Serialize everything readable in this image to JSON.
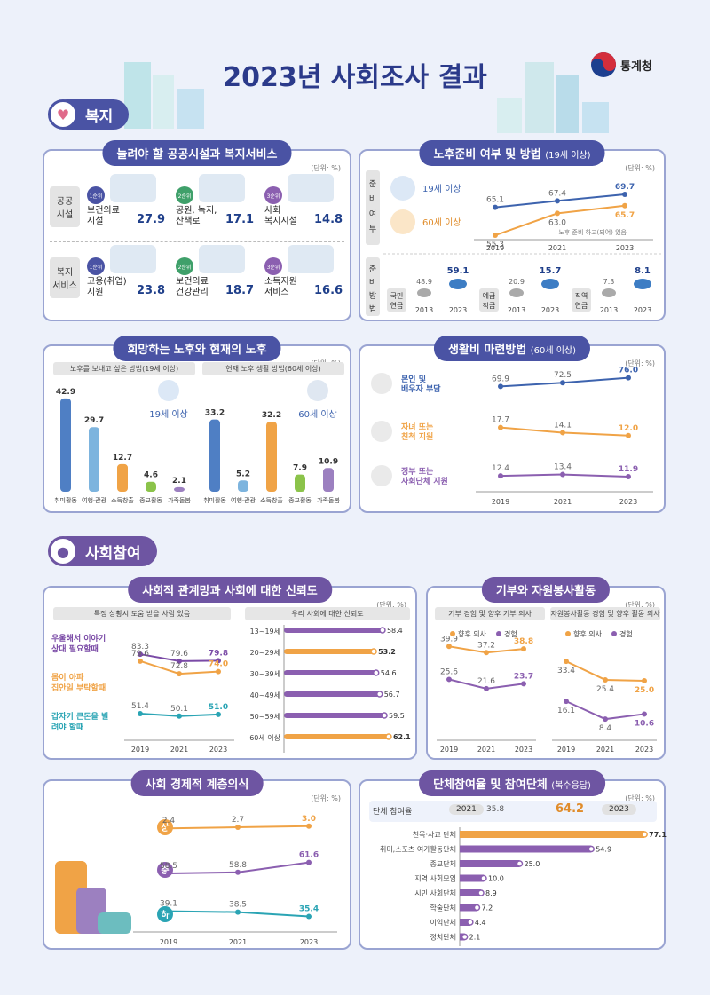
{
  "title": "2023년 사회조사 결과",
  "logo": "통계청",
  "sections": {
    "welfare": "복지",
    "social": "사회참여"
  },
  "unit": "(단위: %)",
  "facilities": {
    "title": "늘려야 할 공공시설과 복지서비스",
    "rows": [
      {
        "label": "공공\n시설",
        "items": [
          {
            "rank": "1순위",
            "name": "보건의료\n시설",
            "value": "27.9"
          },
          {
            "rank": "2순위",
            "name": "공원, 녹지,\n산책로",
            "value": "17.1"
          },
          {
            "rank": "3순위",
            "name": "사회\n복지시설",
            "value": "14.8"
          }
        ]
      },
      {
        "label": "복지\n서비스",
        "items": [
          {
            "rank": "1순위",
            "name": "고용(취업)\n지원",
            "value": "23.8"
          },
          {
            "rank": "2순위",
            "name": "보건의료\n건강관리",
            "value": "18.7"
          },
          {
            "rank": "3순위",
            "name": "소득지원\n서비스",
            "value": "16.6"
          }
        ]
      }
    ]
  },
  "retire_prep": {
    "title": "노후준비 여부 및 방법",
    "title_small": "(19세 이상)",
    "side1": "준비여부",
    "side2": "준비방법",
    "legend19": "19세 이상",
    "legend60": "60세 이상",
    "note": "노후 준비 하고(되어) 있음",
    "years": [
      "2019",
      "2021",
      "2023"
    ],
    "series19": [
      65.1,
      67.4,
      69.7
    ],
    "series60": [
      55.3,
      63.0,
      65.7
    ],
    "labels19": [
      "65.1",
      "67.4",
      "69.7"
    ],
    "labels60": [
      "55.3",
      "63.0",
      "65.7"
    ],
    "methods": [
      {
        "name": "국민\n연금",
        "v2013": "48.9",
        "v2023": "59.1"
      },
      {
        "name": "예금\n적금",
        "v2013": "20.9",
        "v2023": "15.7"
      },
      {
        "name": "직역\n연금",
        "v2013": "7.3",
        "v2023": "8.1"
      }
    ],
    "mini_years": [
      "2013",
      "2023"
    ]
  },
  "hope_retire": {
    "title": "희망하는 노후와 현재의 노후",
    "sub1": "노후를 보내고 싶은 방법(19세 이상)",
    "sub2": "현재 노후 생활 방법(60세 이상)",
    "label19": "19세 이상",
    "label60": "60세 이상",
    "categories": [
      "취미활동",
      "여행·관광",
      "소득창출",
      "종교활동",
      "가족돌봄"
    ],
    "values19": [
      42.9,
      29.7,
      12.7,
      4.6,
      2.1
    ],
    "values60": [
      33.2,
      5.2,
      32.2,
      7.9,
      10.9
    ],
    "labels19": [
      "42.9",
      "29.7",
      "12.7",
      "4.6",
      "2.1"
    ],
    "labels60": [
      "33.2",
      "5.2",
      "32.2",
      "7.9",
      "10.9"
    ]
  },
  "living_cost": {
    "title": "생활비 마련방법",
    "title_small": "(60세 이상)",
    "years": [
      "2019",
      "2021",
      "2023"
    ],
    "series": [
      {
        "name": "본인 및\n배우자 부담",
        "values": [
          69.9,
          72.5,
          76.0
        ],
        "labels": [
          "69.9",
          "72.5",
          "76.0"
        ],
        "color": "#3d63ae"
      },
      {
        "name": "자녀 또는\n친척 지원",
        "values": [
          17.7,
          14.1,
          12.0
        ],
        "labels": [
          "17.7",
          "14.1",
          "12.0"
        ],
        "color": "#f0a346"
      },
      {
        "name": "정부 또는\n사회단체 지원",
        "values": [
          12.4,
          13.4,
          11.9
        ],
        "labels": [
          "12.4",
          "13.4",
          "11.9"
        ],
        "color": "#8b5fb0"
      }
    ]
  },
  "trust": {
    "title": "사회적 관계망과 사회에 대한 신뢰도",
    "sub1": "특정 상황시 도움 받을 사람 있음",
    "sub2": "우리 사회에 대한 신뢰도",
    "years": [
      "2019",
      "2021",
      "2023"
    ],
    "series": [
      {
        "name": "우울해서 이야기\n상대 필요할때",
        "values": [
          83.3,
          79.6,
          79.8
        ],
        "labels": [
          "83.3",
          "79.6",
          "79.8"
        ],
        "color": "#7a4aa6"
      },
      {
        "name": "몸이 아파\n집안일 부탁할때",
        "values": [
          79.6,
          72.8,
          74.0
        ],
        "labels": [
          "79.6",
          "72.8",
          "74.0"
        ],
        "color": "#f0a346"
      },
      {
        "name": "갑자기 큰돈을 빌\n려야 할때",
        "values": [
          51.4,
          50.1,
          51.0
        ],
        "labels": [
          "51.4",
          "50.1",
          "51.0"
        ],
        "color": "#2aa4b4"
      }
    ],
    "ages": [
      "13~19세",
      "20~29세",
      "30~39세",
      "40~49세",
      "50~59세",
      "60세 이상"
    ],
    "age_values": [
      58.4,
      53.2,
      54.6,
      56.7,
      59.5,
      62.1
    ],
    "age_labels": [
      "58.4",
      "53.2",
      "54.6",
      "56.7",
      "59.5",
      "62.1"
    ]
  },
  "donation": {
    "title": "기부와 자원봉사활동",
    "sub1": "기부 경험 및 향후 기부 의사",
    "sub2": "자원봉사활동 경험 및 향후 활동 의사",
    "legend_intent": "향후 의사",
    "legend_exp": "경험",
    "years": [
      "2019",
      "2021",
      "2023"
    ],
    "give_intent": [
      39.9,
      37.2,
      38.8
    ],
    "give_intent_labels": [
      "39.9",
      "37.2",
      "38.8"
    ],
    "give_exp": [
      25.6,
      21.6,
      23.7
    ],
    "give_exp_labels": [
      "25.6",
      "21.6",
      "23.7"
    ],
    "vol_intent": [
      33.4,
      25.4,
      25.0
    ],
    "vol_intent_labels": [
      "33.4",
      "25.4",
      "25.0"
    ],
    "vol_exp": [
      16.1,
      8.4,
      10.6
    ],
    "vol_exp_labels": [
      "16.1",
      "8.4",
      "10.6"
    ]
  },
  "class": {
    "title": "사회 경제적 계층의식",
    "years": [
      "2019",
      "2021",
      "2023"
    ],
    "series": [
      {
        "name": "상",
        "values": [
          2.4,
          2.7,
          3.0
        ],
        "labels": [
          "2.4",
          "2.7",
          "3.0"
        ],
        "color": "#f0a346"
      },
      {
        "name": "중",
        "values": [
          58.5,
          58.8,
          61.6
        ],
        "labels": [
          "58.5",
          "58.8",
          "61.6"
        ],
        "color": "#8b5fb0"
      },
      {
        "name": "하",
        "values": [
          39.1,
          38.5,
          35.4
        ],
        "labels": [
          "39.1",
          "38.5",
          "35.4"
        ],
        "color": "#2aa4b4"
      }
    ]
  },
  "groups": {
    "title": "단체참여율 및 참여단체",
    "title_small": "(복수응답)",
    "rate_label": "단체 참여율",
    "y2021": "2021",
    "v2021": "35.8",
    "y2023": "2023",
    "v2023": "64.2",
    "categories": [
      "친목·사교 단체",
      "취미,스포츠·여가활동단체",
      "종교단체",
      "지역 사회모임",
      "시민 사회단체",
      "학술단체",
      "이익단체",
      "정치단체"
    ],
    "values": [
      77.1,
      54.9,
      25.0,
      10.0,
      8.9,
      7.2,
      4.4,
      2.1
    ],
    "labels": [
      "77.1",
      "54.9",
      "25.0",
      "10.0",
      "8.9",
      "7.2",
      "4.4",
      "2.1"
    ]
  },
  "chart_data": [
    {
      "type": "bar",
      "title": "늘려야 할 공공시설과 복지서비스",
      "categories": [
        "보건의료시설",
        "공원, 녹지, 산책로",
        "사회복지시설",
        "고용(취업)지원",
        "보건의료건강관리",
        "소득지원서비스"
      ],
      "values": [
        27.9,
        17.1,
        14.8,
        23.8,
        18.7,
        16.6
      ]
    },
    {
      "type": "line",
      "title": "노후준비 여부 및 방법",
      "x": [
        "2019",
        "2021",
        "2023"
      ],
      "series": [
        {
          "name": "19세 이상",
          "values": [
            65.1,
            67.4,
            69.7
          ]
        },
        {
          "name": "60세 이상",
          "values": [
            55.3,
            63.0,
            65.7
          ]
        }
      ]
    },
    {
      "type": "bar",
      "title": "노후준비 방법",
      "categories": [
        "국민연금",
        "예금적금",
        "직역연금"
      ],
      "series": [
        {
          "name": "2013",
          "values": [
            48.9,
            20.9,
            7.3
          ]
        },
        {
          "name": "2023",
          "values": [
            59.1,
            15.7,
            8.1
          ]
        }
      ]
    },
    {
      "type": "bar",
      "title": "희망하는 노후와 현재의 노후",
      "categories": [
        "취미활동",
        "여행·관광",
        "소득창출",
        "종교활동",
        "가족돌봄"
      ],
      "series": [
        {
          "name": "19세 이상",
          "values": [
            42.9,
            29.7,
            12.7,
            4.6,
            2.1
          ]
        },
        {
          "name": "60세 이상",
          "values": [
            33.2,
            5.2,
            32.2,
            7.9,
            10.9
          ]
        }
      ]
    },
    {
      "type": "line",
      "title": "생활비 마련방법",
      "x": [
        "2019",
        "2021",
        "2023"
      ],
      "series": [
        {
          "name": "본인 및 배우자 부담",
          "values": [
            69.9,
            72.5,
            76.0
          ]
        },
        {
          "name": "자녀 또는 친척 지원",
          "values": [
            17.7,
            14.1,
            12.0
          ]
        },
        {
          "name": "정부 또는 사회단체 지원",
          "values": [
            12.4,
            13.4,
            11.9
          ]
        }
      ]
    },
    {
      "type": "line",
      "title": "사회적 관계망",
      "x": [
        "2019",
        "2021",
        "2023"
      ],
      "series": [
        {
          "name": "우울해서 이야기 상대 필요할때",
          "values": [
            83.3,
            79.6,
            79.8
          ]
        },
        {
          "name": "몸이 아파 집안일 부탁할때",
          "values": [
            79.6,
            72.8,
            74.0
          ]
        },
        {
          "name": "갑자기 큰돈을 빌려야 할때",
          "values": [
            51.4,
            50.1,
            51.0
          ]
        }
      ]
    },
    {
      "type": "bar",
      "title": "우리 사회에 대한 신뢰도",
      "categories": [
        "13~19세",
        "20~29세",
        "30~39세",
        "40~49세",
        "50~59세",
        "60세 이상"
      ],
      "values": [
        58.4,
        53.2,
        54.6,
        56.7,
        59.5,
        62.1
      ]
    },
    {
      "type": "line",
      "title": "기부와 자원봉사활동",
      "x": [
        "2019",
        "2021",
        "2023"
      ],
      "series": [
        {
          "name": "향후 의사",
          "values": [
            39.9,
            37.2,
            38.8
          ]
        },
        {
          "name": "경험",
          "values": [
            25.6,
            21.6,
            23.7
          ]
        },
        {
          "name": "향후 의사",
          "values": [
            33.4,
            25.4,
            25.0
          ]
        },
        {
          "name": "경험",
          "values": [
            16.1,
            8.4,
            10.6
          ]
        }
      ]
    },
    {
      "type": "line",
      "title": "사회 경제적 계층의식",
      "x": [
        "2019",
        "2021",
        "2023"
      ],
      "series": [
        {
          "name": "상",
          "values": [
            2.4,
            2.7,
            3.0
          ]
        },
        {
          "name": "중",
          "values": [
            58.5,
            58.8,
            61.6
          ]
        },
        {
          "name": "하",
          "values": [
            39.1,
            38.5,
            35.4
          ]
        }
      ]
    },
    {
      "type": "bar",
      "title": "단체참여율 및 참여단체",
      "categories": [
        "친목·사교 단체",
        "취미,스포츠·여가활동단체",
        "종교단체",
        "지역 사회모임",
        "시민 사회단체",
        "학술단체",
        "이익단체",
        "정치단체"
      ],
      "values": [
        77.1,
        54.9,
        25.0,
        10.0,
        8.9,
        7.2,
        4.4,
        2.1
      ]
    }
  ]
}
